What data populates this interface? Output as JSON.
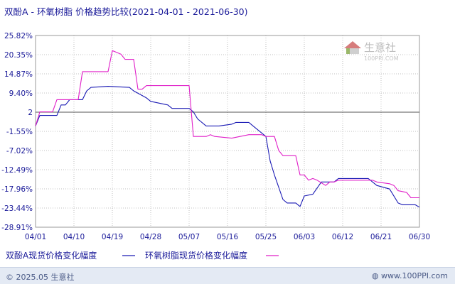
{
  "title": "双酚A - 环氧树脂 价格趋势比较(2021-04-01 - 2021-06-30)",
  "watermark": {
    "brand": "生意社",
    "site": "100PPI.COM"
  },
  "footer": {
    "copyright": "© 2025.05 生意社",
    "site": "www.100PPI.com"
  },
  "colors": {
    "series1": "#1a1ab4",
    "series2": "#e01ec8",
    "text": "#1a1a99",
    "grid": "#c0c0c0"
  },
  "chart_data": {
    "type": "line",
    "x_axis": {
      "range": [
        "04/01",
        "06/30"
      ],
      "ticks": [
        "04/01",
        "04/10",
        "04/19",
        "04/28",
        "05/07",
        "05/16",
        "05/25",
        "06/03",
        "06/12",
        "06/21",
        "06/30"
      ]
    },
    "y_axis": {
      "ticks": [
        "25.82%",
        "20.35%",
        "14.87%",
        "9.40%",
        "2",
        "-1.55%",
        "-7.02%",
        "-12.49%",
        "-17.96%",
        "-23.44%",
        "-28.91%"
      ],
      "range": [
        -28.91,
        25.82
      ],
      "reference_line": 3.93
    },
    "grid": true,
    "legend_position": "bottom",
    "series": [
      {
        "name": "双酚A现货价格变化幅度",
        "points": [
          [
            "04/01",
            0
          ],
          [
            "04/02",
            3
          ],
          [
            "04/06",
            3
          ],
          [
            "04/07",
            6
          ],
          [
            "04/08",
            6
          ],
          [
            "04/09",
            7.5
          ],
          [
            "04/12",
            7.5
          ],
          [
            "04/13",
            10
          ],
          [
            "04/14",
            11
          ],
          [
            "04/18",
            11.3
          ],
          [
            "04/23",
            11
          ],
          [
            "04/24",
            10
          ],
          [
            "04/27",
            8
          ],
          [
            "04/28",
            7
          ],
          [
            "05/01",
            6
          ],
          [
            "05/02",
            5
          ],
          [
            "05/06",
            5
          ],
          [
            "05/07",
            4
          ],
          [
            "05/08",
            2
          ],
          [
            "05/10",
            0
          ],
          [
            "05/13",
            0
          ],
          [
            "05/16",
            0.5
          ],
          [
            "05/17",
            1
          ],
          [
            "05/20",
            1
          ],
          [
            "05/21",
            0
          ],
          [
            "05/24",
            -3
          ],
          [
            "05/25",
            -10
          ],
          [
            "05/26",
            -14
          ],
          [
            "05/28",
            -21
          ],
          [
            "05/29",
            -22
          ],
          [
            "06/01",
            -22
          ],
          [
            "06/02",
            -23
          ],
          [
            "06/03",
            -20
          ],
          [
            "06/05",
            -19.5
          ],
          [
            "06/07",
            -16
          ],
          [
            "06/10",
            -16
          ],
          [
            "06/11",
            -15
          ],
          [
            "06/18",
            -15
          ],
          [
            "06/20",
            -17
          ],
          [
            "06/23",
            -18
          ],
          [
            "06/25",
            -22
          ],
          [
            "06/26",
            -22.5
          ],
          [
            "06/29",
            -22.5
          ],
          [
            "06/30",
            -23.2
          ]
        ]
      },
      {
        "name": "环氧树脂现货价格变化幅度",
        "points": [
          [
            "04/01",
            0
          ],
          [
            "04/02",
            4
          ],
          [
            "04/05",
            4
          ],
          [
            "04/06",
            7.5
          ],
          [
            "04/11",
            7.5
          ],
          [
            "04/12",
            15.5
          ],
          [
            "04/18",
            15.5
          ],
          [
            "04/19",
            21.5
          ],
          [
            "04/20",
            21
          ],
          [
            "04/21",
            20.5
          ],
          [
            "04/22",
            19
          ],
          [
            "04/24",
            19
          ],
          [
            "04/25",
            10.5
          ],
          [
            "04/26",
            10.5
          ],
          [
            "04/27",
            11.5
          ],
          [
            "05/03",
            11.5
          ],
          [
            "05/06",
            11.5
          ],
          [
            "05/07",
            -3
          ],
          [
            "05/10",
            -3
          ],
          [
            "05/11",
            -2.5
          ],
          [
            "05/12",
            -3
          ],
          [
            "05/16",
            -3.5
          ],
          [
            "05/20",
            -2.5
          ],
          [
            "05/23",
            -2.5
          ],
          [
            "05/24",
            -3
          ],
          [
            "05/26",
            -3
          ],
          [
            "05/27",
            -7
          ],
          [
            "05/28",
            -8.5
          ],
          [
            "05/31",
            -8.5
          ],
          [
            "06/01",
            -8.5
          ],
          [
            "06/02",
            -14
          ],
          [
            "06/03",
            -14
          ],
          [
            "06/04",
            -15.5
          ],
          [
            "06/05",
            -15
          ],
          [
            "06/06",
            -15.5
          ],
          [
            "06/08",
            -17
          ],
          [
            "06/09",
            -16
          ],
          [
            "06/10",
            -16
          ],
          [
            "06/11",
            -15.5
          ],
          [
            "06/19",
            -15.5
          ],
          [
            "06/20",
            -16
          ],
          [
            "06/23",
            -16.5
          ],
          [
            "06/24",
            -17
          ],
          [
            "06/25",
            -18.5
          ],
          [
            "06/27",
            -19
          ],
          [
            "06/28",
            -20.5
          ],
          [
            "06/30",
            -20.5
          ]
        ]
      }
    ]
  }
}
